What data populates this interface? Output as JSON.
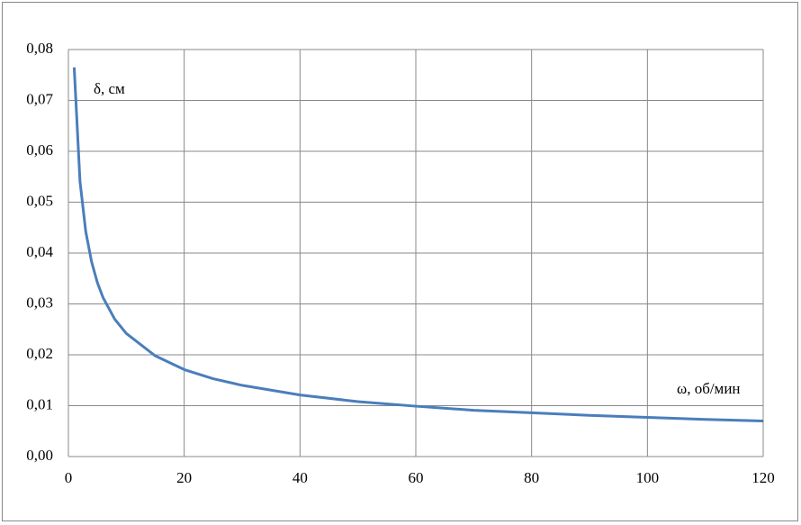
{
  "chart_data": {
    "type": "line",
    "y_label": "δ, см",
    "x_label": "ω, об/мин",
    "x": [
      1,
      2,
      3,
      4,
      5,
      6,
      8,
      10,
      15,
      20,
      25,
      30,
      40,
      50,
      60,
      70,
      80,
      90,
      100,
      110,
      120
    ],
    "series": [
      {
        "color": "#4a7ebb",
        "values": [
          0.0765,
          0.0541,
          0.0442,
          0.0383,
          0.0342,
          0.0312,
          0.027,
          0.0242,
          0.0198,
          0.0171,
          0.0153,
          0.014,
          0.0121,
          0.0108,
          0.0099,
          0.0091,
          0.0086,
          0.0081,
          0.0077,
          0.0073,
          0.007
        ]
      }
    ],
    "xlim": [
      0,
      120
    ],
    "xticks": [
      0,
      20,
      40,
      60,
      80,
      100,
      120
    ],
    "ylim": [
      0,
      0.08
    ],
    "yticks": [
      {
        "value": 0,
        "label": "0,00"
      },
      {
        "value": 0.01,
        "label": "0,01"
      },
      {
        "value": 0.02,
        "label": "0,02"
      },
      {
        "value": 0.03,
        "label": "0,03"
      },
      {
        "value": 0.04,
        "label": "0,04"
      },
      {
        "value": 0.05,
        "label": "0,05"
      },
      {
        "value": 0.06,
        "label": "0,06"
      },
      {
        "value": 0.07,
        "label": "0,07"
      },
      {
        "value": 0.08,
        "label": "0,08"
      }
    ],
    "grid": true
  }
}
